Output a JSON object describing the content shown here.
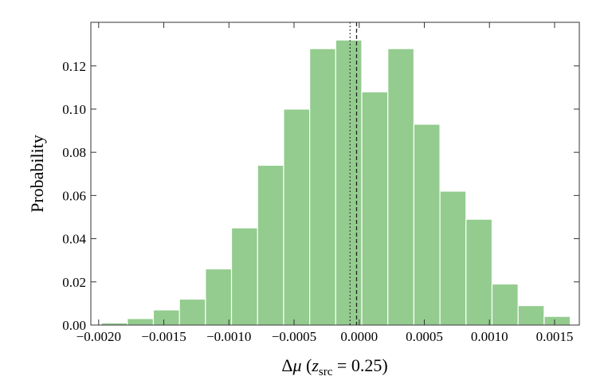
{
  "chart_data": {
    "type": "histogram",
    "x_label": {
      "prefix": "Δ",
      "mu": "μ",
      "open": " (",
      "var": "z",
      "sub": "src",
      "rest": " = 0.25)"
    },
    "y_label": "Probability",
    "bins": [
      -0.00198,
      -0.00178,
      -0.00158,
      -0.00138,
      -0.00118,
      -0.00098,
      -0.00078,
      -0.00058,
      -0.00038,
      -0.00018,
      2e-05,
      0.00022,
      0.00042,
      0.00062,
      0.00082,
      0.00102,
      0.00122,
      0.00142,
      0.00162
    ],
    "values": [
      0.001,
      0.003,
      0.007,
      0.012,
      0.026,
      0.045,
      0.074,
      0.1,
      0.128,
      0.132,
      0.108,
      0.128,
      0.093,
      0.062,
      0.049,
      0.019,
      0.009,
      0.004
    ],
    "color": "#93cc8e",
    "xlim": [
      -0.00206,
      0.00169
    ],
    "ylim": [
      0,
      0.1402
    ],
    "xticks": [
      {
        "value": -0.002,
        "label": "−0.0020"
      },
      {
        "value": -0.0015,
        "label": "−0.0015"
      },
      {
        "value": -0.001,
        "label": "−0.0010"
      },
      {
        "value": -0.0005,
        "label": "−0.0005"
      },
      {
        "value": 0,
        "label": "0.0000"
      },
      {
        "value": 0.0005,
        "label": "0.0005"
      },
      {
        "value": 0.001,
        "label": "0.0010"
      },
      {
        "value": 0.0015,
        "label": "0.0015"
      }
    ],
    "yticks": [
      {
        "value": 0,
        "label": "0.00"
      },
      {
        "value": 0.02,
        "label": "0.02"
      },
      {
        "value": 0.04,
        "label": "0.04"
      },
      {
        "value": 0.06,
        "label": "0.06"
      },
      {
        "value": 0.08,
        "label": "0.08"
      },
      {
        "value": 0.1,
        "label": "0.10"
      },
      {
        "value": 0.12,
        "label": "0.12"
      }
    ],
    "vlines": [
      {
        "value": -7e-05,
        "style": "dotted"
      },
      {
        "value": -2e-05,
        "style": "dashed"
      }
    ]
  }
}
